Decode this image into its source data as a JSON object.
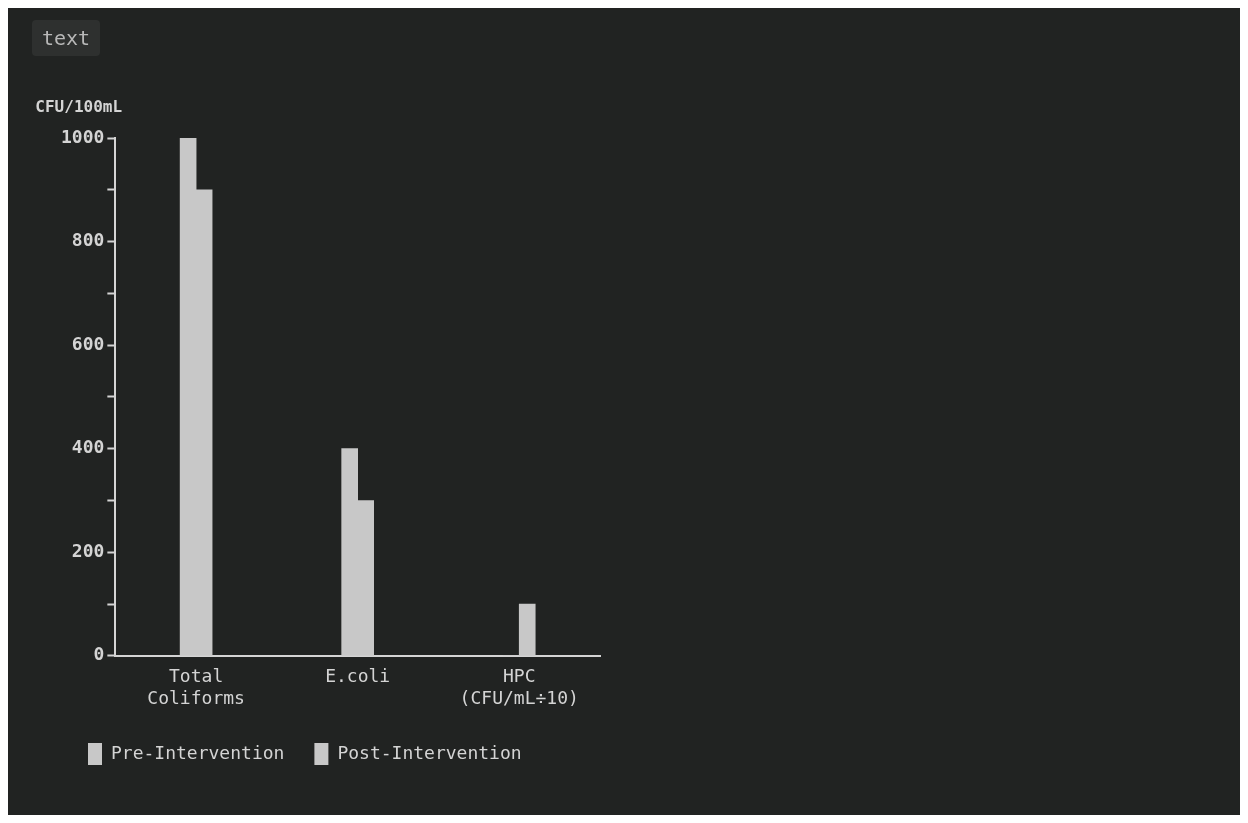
{
  "chart_data": {
    "type": "bar",
    "ylabel": "CFU/100mL",
    "annotations": [
      "text"
    ],
    "categories": [
      "Total Coliforms",
      "E.coli",
      "HPC (CFU/mL÷10)"
    ],
    "series": [
      {
        "name": "Pre-Intervention",
        "color": "#c8c8c8",
        "values": [
          1000,
          400,
          0
        ]
      },
      {
        "name": "Post-Intervention",
        "color": "#c8c8c8",
        "values": [
          900,
          300,
          100
        ]
      }
    ],
    "ylim": [
      0,
      1000
    ],
    "yticks": [
      0,
      {
        "value": 100,
        "label": null
      },
      200,
      {
        "value": 300,
        "label": null
      },
      400,
      {
        "value": 500,
        "label": null
      },
      600,
      {
        "value": 700,
        "label": null
      },
      800,
      {
        "value": 900,
        "label": null
      },
      1000
    ],
    "grid": false,
    "legend": "bottom"
  }
}
